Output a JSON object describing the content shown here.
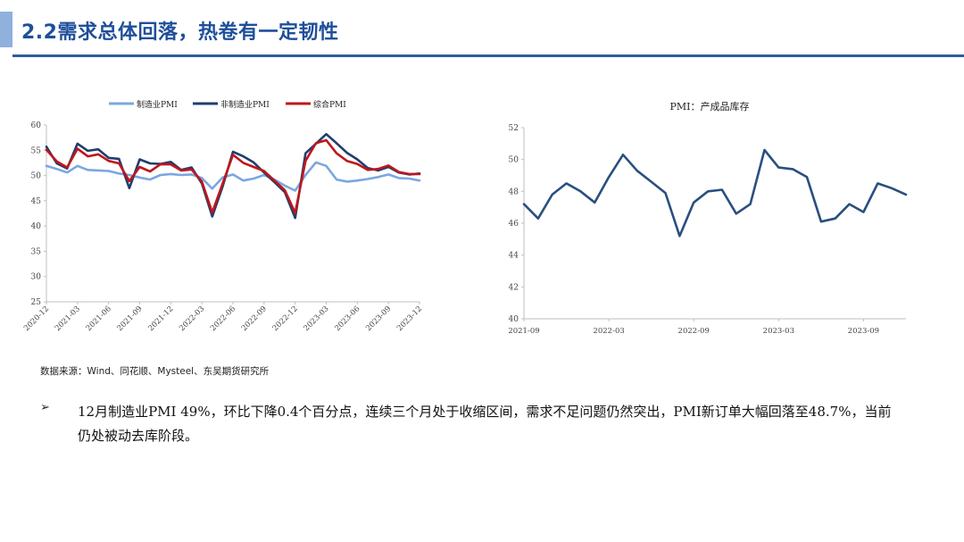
{
  "header": {
    "title": "2.2需求总体回落，热卷有一定韧性",
    "accent_color": "#8fb1dc",
    "line_color": "#2c5c9e"
  },
  "chart_data": [
    {
      "type": "line",
      "title": "",
      "legend": [
        "制造业PMI",
        "非制造业PMI",
        "综合PMI"
      ],
      "legend_position": "top",
      "x": [
        "2020-12",
        "2021-01",
        "2021-02",
        "2021-03",
        "2021-04",
        "2021-05",
        "2021-06",
        "2021-07",
        "2021-08",
        "2021-09",
        "2021-10",
        "2021-11",
        "2021-12",
        "2022-01",
        "2022-02",
        "2022-03",
        "2022-04",
        "2022-05",
        "2022-06",
        "2022-07",
        "2022-08",
        "2022-09",
        "2022-10",
        "2022-11",
        "2022-12",
        "2023-01",
        "2023-02",
        "2023-03",
        "2023-04",
        "2023-05",
        "2023-06",
        "2023-07",
        "2023-08",
        "2023-09",
        "2023-10",
        "2023-11",
        "2023-12"
      ],
      "tick_labels": [
        "2020-12",
        "2021-03",
        "2021-06",
        "2021-09",
        "2021-12",
        "2022-03",
        "2022-06",
        "2022-09",
        "2022-12",
        "2023-03",
        "2023-06",
        "2023-09",
        "2023-12"
      ],
      "ylim": [
        25,
        60
      ],
      "yticks": [
        25,
        30,
        35,
        40,
        45,
        50,
        55,
        60
      ],
      "series": [
        {
          "name": "制造业PMI",
          "color": "#7ba7e1",
          "values": [
            51.9,
            51.3,
            50.6,
            51.9,
            51.1,
            51.0,
            50.9,
            50.4,
            50.1,
            49.6,
            49.2,
            50.1,
            50.3,
            50.1,
            50.2,
            49.5,
            47.4,
            49.6,
            50.2,
            49.0,
            49.4,
            50.1,
            49.2,
            48.0,
            47.0,
            50.1,
            52.6,
            51.9,
            49.2,
            48.8,
            49.0,
            49.3,
            49.7,
            50.2,
            49.5,
            49.4,
            49.0
          ]
        },
        {
          "name": "非制造业PMI",
          "color": "#1f3e6e",
          "values": [
            55.7,
            52.4,
            51.4,
            56.3,
            54.9,
            55.2,
            53.5,
            53.3,
            47.5,
            53.2,
            52.4,
            52.3,
            52.7,
            51.1,
            51.6,
            48.4,
            41.9,
            47.8,
            54.7,
            53.8,
            52.6,
            50.6,
            48.7,
            46.7,
            41.6,
            54.4,
            56.3,
            58.2,
            56.4,
            54.5,
            53.2,
            51.5,
            51.0,
            51.7,
            50.6,
            50.2,
            50.4
          ]
        },
        {
          "name": "综合PMI",
          "color": "#c0161b",
          "values": [
            55.1,
            52.8,
            51.6,
            55.3,
            53.8,
            54.2,
            52.9,
            52.4,
            48.9,
            51.7,
            50.8,
            52.2,
            52.2,
            51.0,
            51.2,
            48.8,
            42.7,
            48.4,
            54.1,
            52.5,
            51.7,
            50.9,
            49.0,
            47.1,
            42.6,
            52.9,
            56.4,
            57.0,
            54.4,
            52.9,
            52.3,
            51.1,
            51.3,
            52.0,
            50.7,
            50.3,
            50.3
          ]
        }
      ]
    },
    {
      "type": "line",
      "title": "PMI：产成品库存",
      "x": [
        "2021-09",
        "2021-10",
        "2021-11",
        "2021-12",
        "2022-01",
        "2022-02",
        "2022-03",
        "2022-04",
        "2022-05",
        "2022-06",
        "2022-07",
        "2022-08",
        "2022-09",
        "2022-10",
        "2022-11",
        "2022-12",
        "2023-01",
        "2023-02",
        "2023-03",
        "2023-04",
        "2023-05",
        "2023-06",
        "2023-07",
        "2023-08",
        "2023-09",
        "2023-10",
        "2023-11",
        "2023-12"
      ],
      "tick_labels": [
        "2021-09",
        "2022-03",
        "2022-09",
        "2023-03",
        "2023-09"
      ],
      "ylim": [
        40,
        52
      ],
      "yticks": [
        40,
        42,
        44,
        46,
        48,
        50,
        52
      ],
      "series": [
        {
          "name": "PMI：产成品库存",
          "color": "#2a4f7e",
          "values": [
            47.2,
            46.3,
            47.8,
            48.5,
            48.0,
            47.3,
            48.9,
            50.3,
            49.3,
            48.6,
            47.9,
            45.2,
            47.3,
            48.0,
            48.1,
            46.6,
            47.2,
            50.6,
            49.5,
            49.4,
            48.9,
            46.1,
            46.3,
            47.2,
            46.7,
            48.5,
            48.2,
            47.8
          ]
        }
      ]
    }
  ],
  "source_note": "数据来源：Wind、同花顺、Mysteel、东吴期货研究所",
  "bullet": {
    "symbol": "➢",
    "text": "12月制造业PMI 49%，环比下降0.4个百分点，连续三个月处于收缩区间，需求不足问题仍然突出，PMI新订单大幅回落至48.7%，当前仍处被动去库阶段。"
  }
}
